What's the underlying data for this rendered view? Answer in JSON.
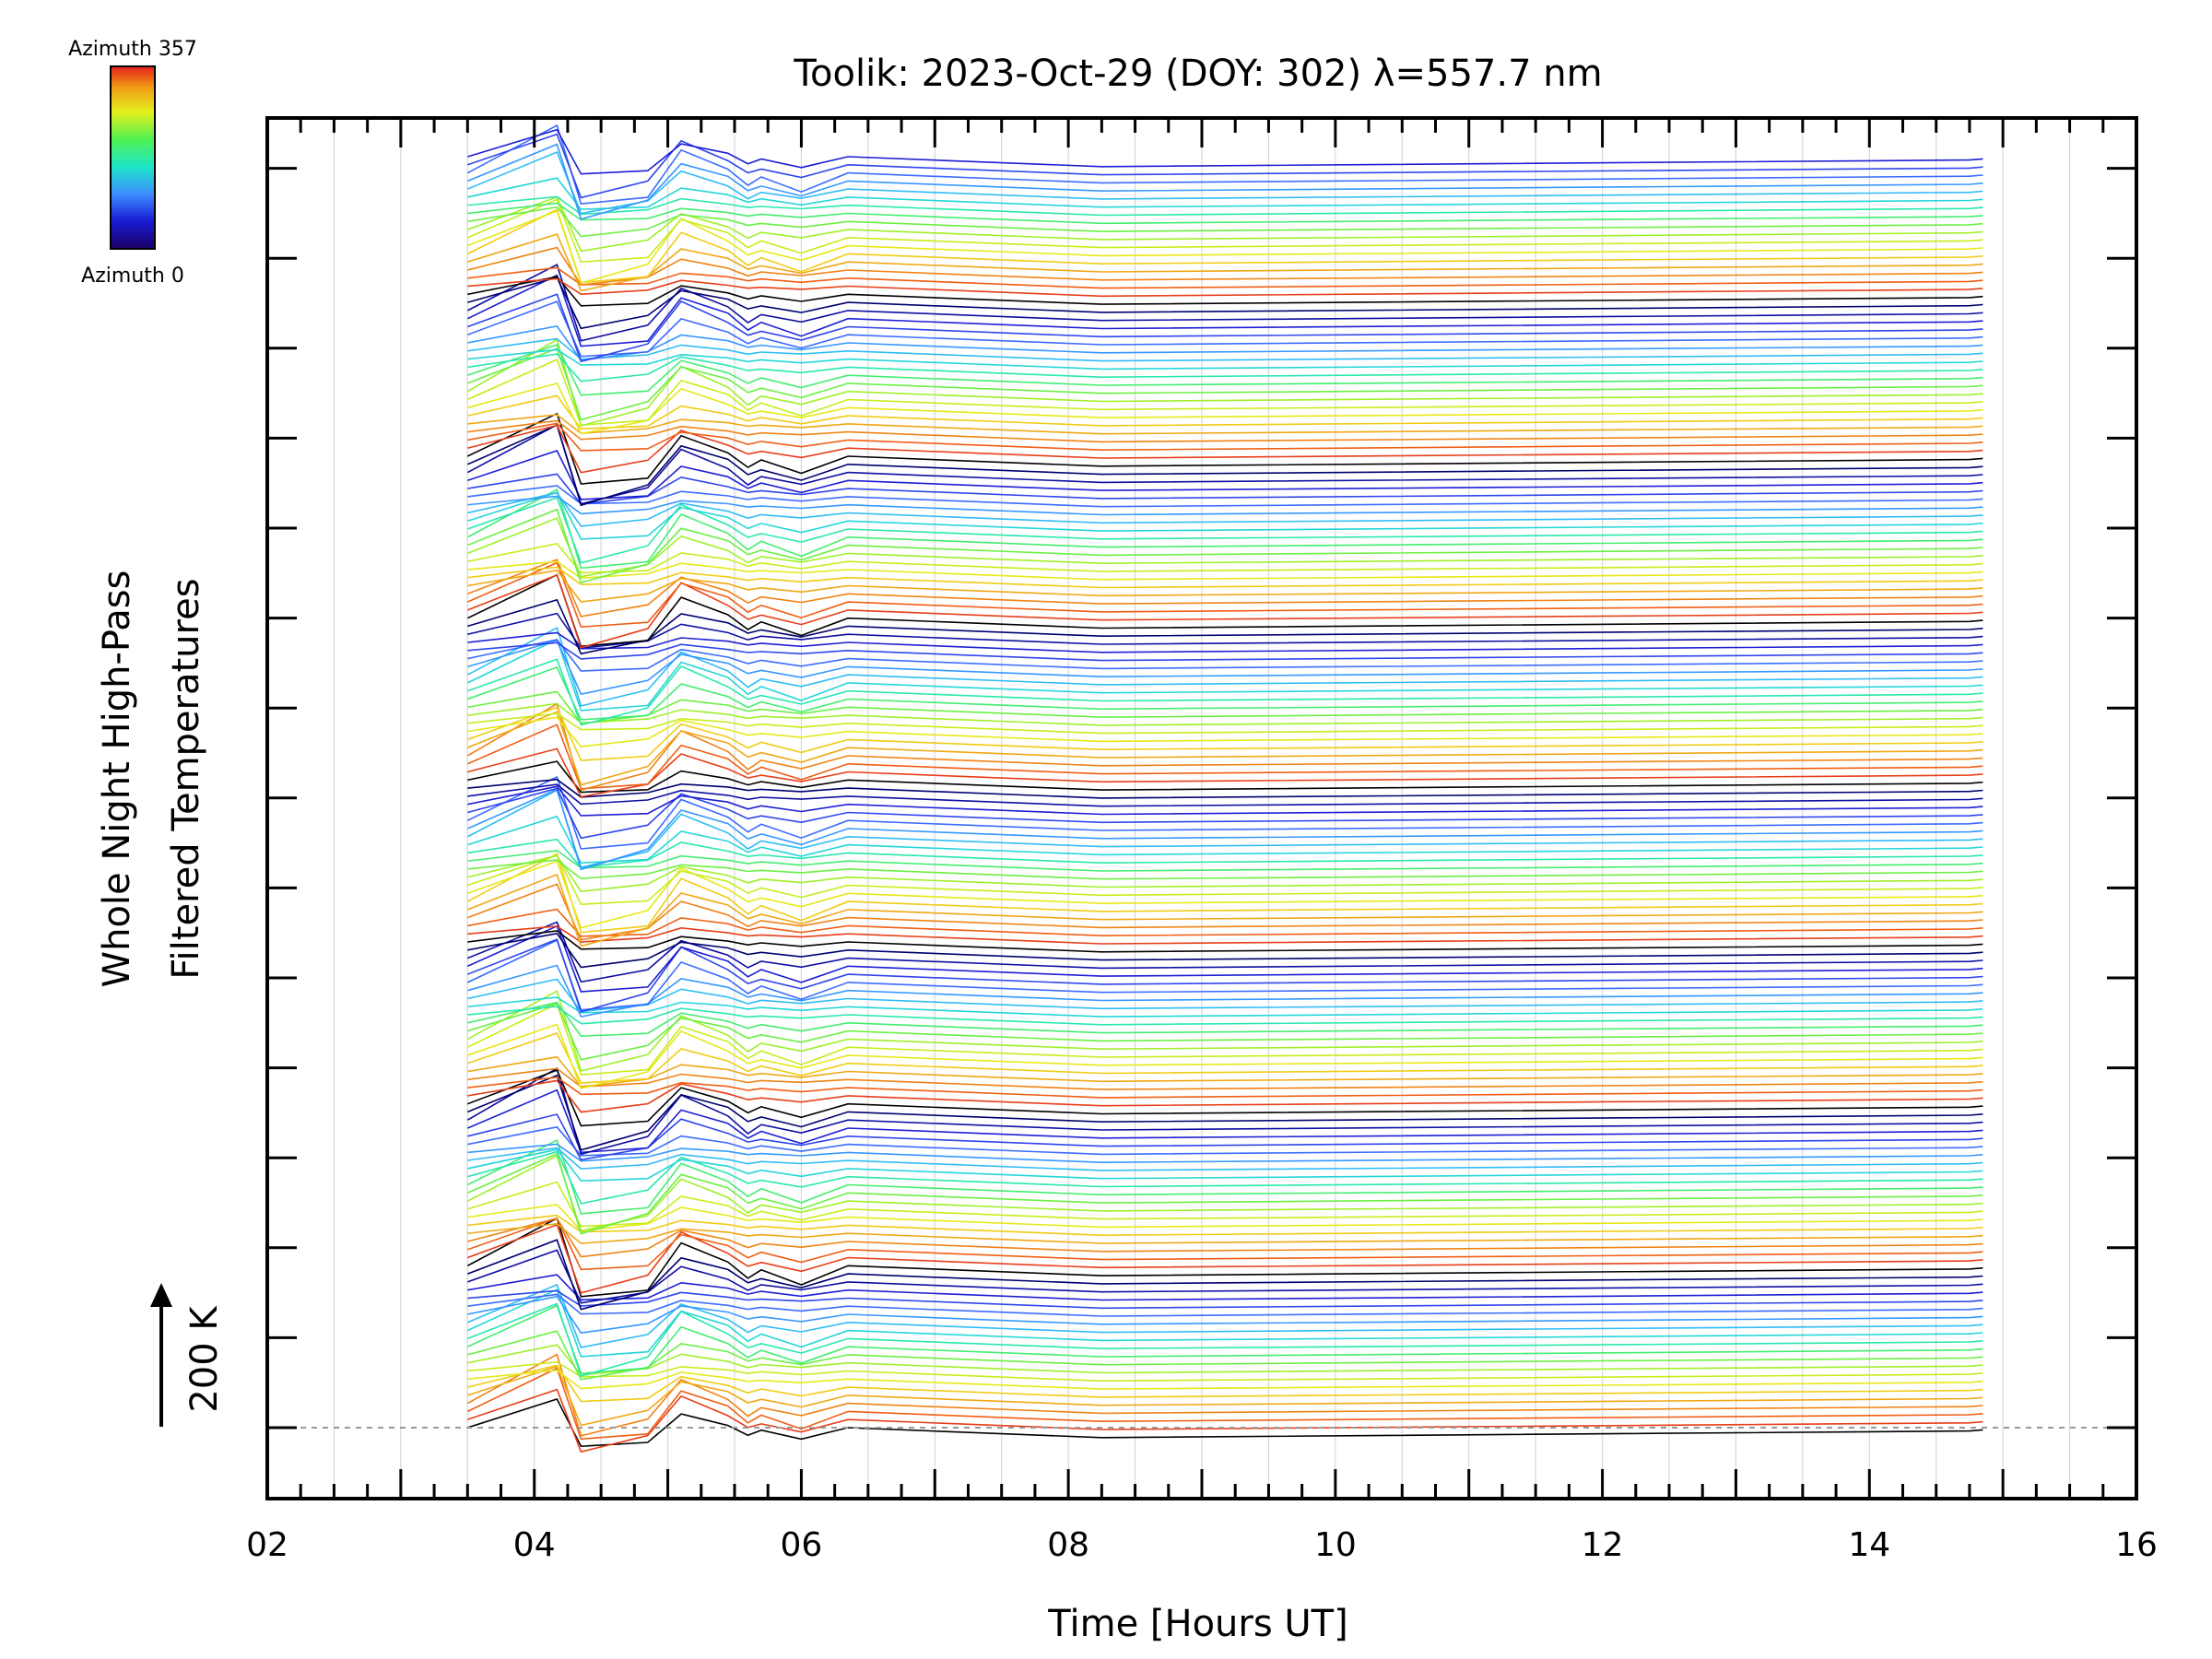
{
  "chart_data": {
    "type": "line",
    "title": "Toolik: 2023-Oct-29 (DOY: 302) λ=557.7 nm",
    "xlabel": "Time [Hours UT]",
    "ylabel_line1": "Whole Night High-Pass",
    "ylabel_line2": "Filtered Temperatures",
    "scale_label": "200 K",
    "x_tick_labels": [
      "02",
      "04",
      "06",
      "08",
      "10",
      "12",
      "14",
      "16"
    ],
    "xlim": [
      2,
      16
    ],
    "colorbar": {
      "max_label": "Azimuth 357",
      "min_label": "Azimuth 0",
      "min": 0,
      "max": 357
    },
    "series_count": 158,
    "series_note_visible": "",
    "x": [
      3.5,
      4.17,
      4.35,
      4.85,
      5.1,
      5.45,
      5.6,
      5.7,
      6.0,
      6.35,
      8.25,
      14.75,
      14.85
    ],
    "series_template": {
      "colors": [
        "#00006e",
        "#1a1ad2",
        "#3c64ff",
        "#32b4ff",
        "#1ee6c8",
        "#50f050",
        "#b4f01e",
        "#f0e614",
        "#f0a014",
        "#f05a14",
        "#dc1e1e"
      ],
      "accent": "#000000"
    }
  }
}
